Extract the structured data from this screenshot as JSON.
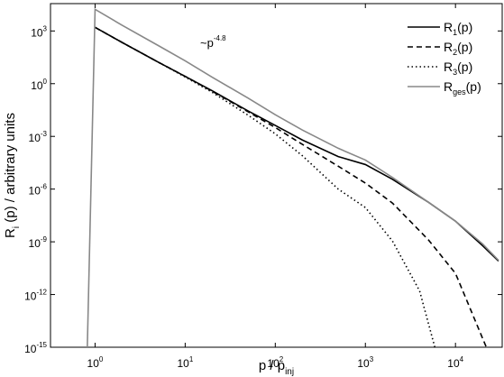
{
  "chart_data": {
    "type": "line",
    "xlabel": [
      "p / p",
      "inj"
    ],
    "ylabel": [
      "R",
      "i",
      " (p) / arbitrary units"
    ],
    "xscale": "log",
    "yscale": "log",
    "xlim": [
      0.32,
      33000
    ],
    "ylim": [
      1e-15,
      36000
    ],
    "xticks": [
      {
        "value": 1,
        "label": [
          "10",
          "0"
        ]
      },
      {
        "value": 10,
        "label": [
          "10",
          "1"
        ]
      },
      {
        "value": 100,
        "label": [
          "10",
          "2"
        ]
      },
      {
        "value": 1000,
        "label": [
          "10",
          "3"
        ]
      },
      {
        "value": 10000,
        "label": [
          "10",
          "4"
        ]
      }
    ],
    "yticks": [
      {
        "value": 1000,
        "label": [
          "10",
          "3"
        ]
      },
      {
        "value": 1,
        "label": [
          "10",
          "0"
        ]
      },
      {
        "value": 0.001,
        "label": [
          "10",
          "-3"
        ]
      },
      {
        "value": 1e-06,
        "label": [
          "10",
          "-6"
        ]
      },
      {
        "value": 1e-09,
        "label": [
          "10",
          "-9"
        ]
      },
      {
        "value": 1e-12,
        "label": [
          "10",
          "-12"
        ]
      },
      {
        "value": 1e-15,
        "label": [
          "10",
          "-15"
        ]
      }
    ],
    "legend": "upper right",
    "annotation": [
      "~p",
      "-4.8"
    ],
    "series": [
      {
        "name": [
          "R",
          "1",
          "(p)"
        ],
        "color": "#000000",
        "dash": "solid",
        "x": [
          1,
          2,
          5,
          10,
          20,
          50,
          100,
          200,
          500,
          1000,
          2000,
          5000,
          10000,
          20000,
          30000
        ],
        "values": [
          1600,
          220,
          17,
          2.6,
          0.39,
          0.028,
          0.0042,
          0.00062,
          7.1e-05,
          2.5e-05,
          3.6e-06,
          1.8e-07,
          1.5e-08,
          6e-10,
          8e-11
        ]
      },
      {
        "name": [
          "R",
          "2",
          "(p)"
        ],
        "color": "#000000",
        "dash": "dashed",
        "x": [
          1,
          2,
          5,
          10,
          20,
          50,
          100,
          200,
          500,
          1000,
          2000,
          5000,
          10000,
          20000,
          22000
        ],
        "values": [
          1600,
          220,
          17,
          2.6,
          0.37,
          0.025,
          0.0032,
          0.00035,
          2e-05,
          2.2e-06,
          1.6e-07,
          1.3e-09,
          1.6e-11,
          3.2e-15,
          1e-15
        ]
      },
      {
        "name": [
          "R",
          "3",
          "(p)"
        ],
        "color": "#000000",
        "dash": "dotted",
        "x": [
          1,
          2,
          5,
          10,
          20,
          50,
          100,
          200,
          500,
          1000,
          2000,
          4000,
          5900
        ],
        "values": [
          1600,
          220,
          17,
          2.4,
          0.32,
          0.016,
          0.0014,
          7.9e-05,
          1e-06,
          8.9e-08,
          1.1e-09,
          1.6e-12,
          1e-15
        ]
      },
      {
        "name": [
          "R",
          "ges",
          "(p)"
        ],
        "color": "#888888",
        "dash": "solid",
        "x": [
          0.82,
          1,
          2,
          5,
          10,
          20,
          50,
          100,
          200,
          500,
          1000,
          2000,
          5000,
          10000,
          20000,
          30000
        ],
        "values": [
          1e-15,
          17000,
          2100,
          150,
          20,
          2.3,
          0.15,
          0.017,
          0.0023,
          0.00021,
          4.5e-05,
          4.6e-06,
          1.8e-07,
          1.5e-08,
          7.6e-10,
          8.9e-11
        ]
      }
    ]
  }
}
